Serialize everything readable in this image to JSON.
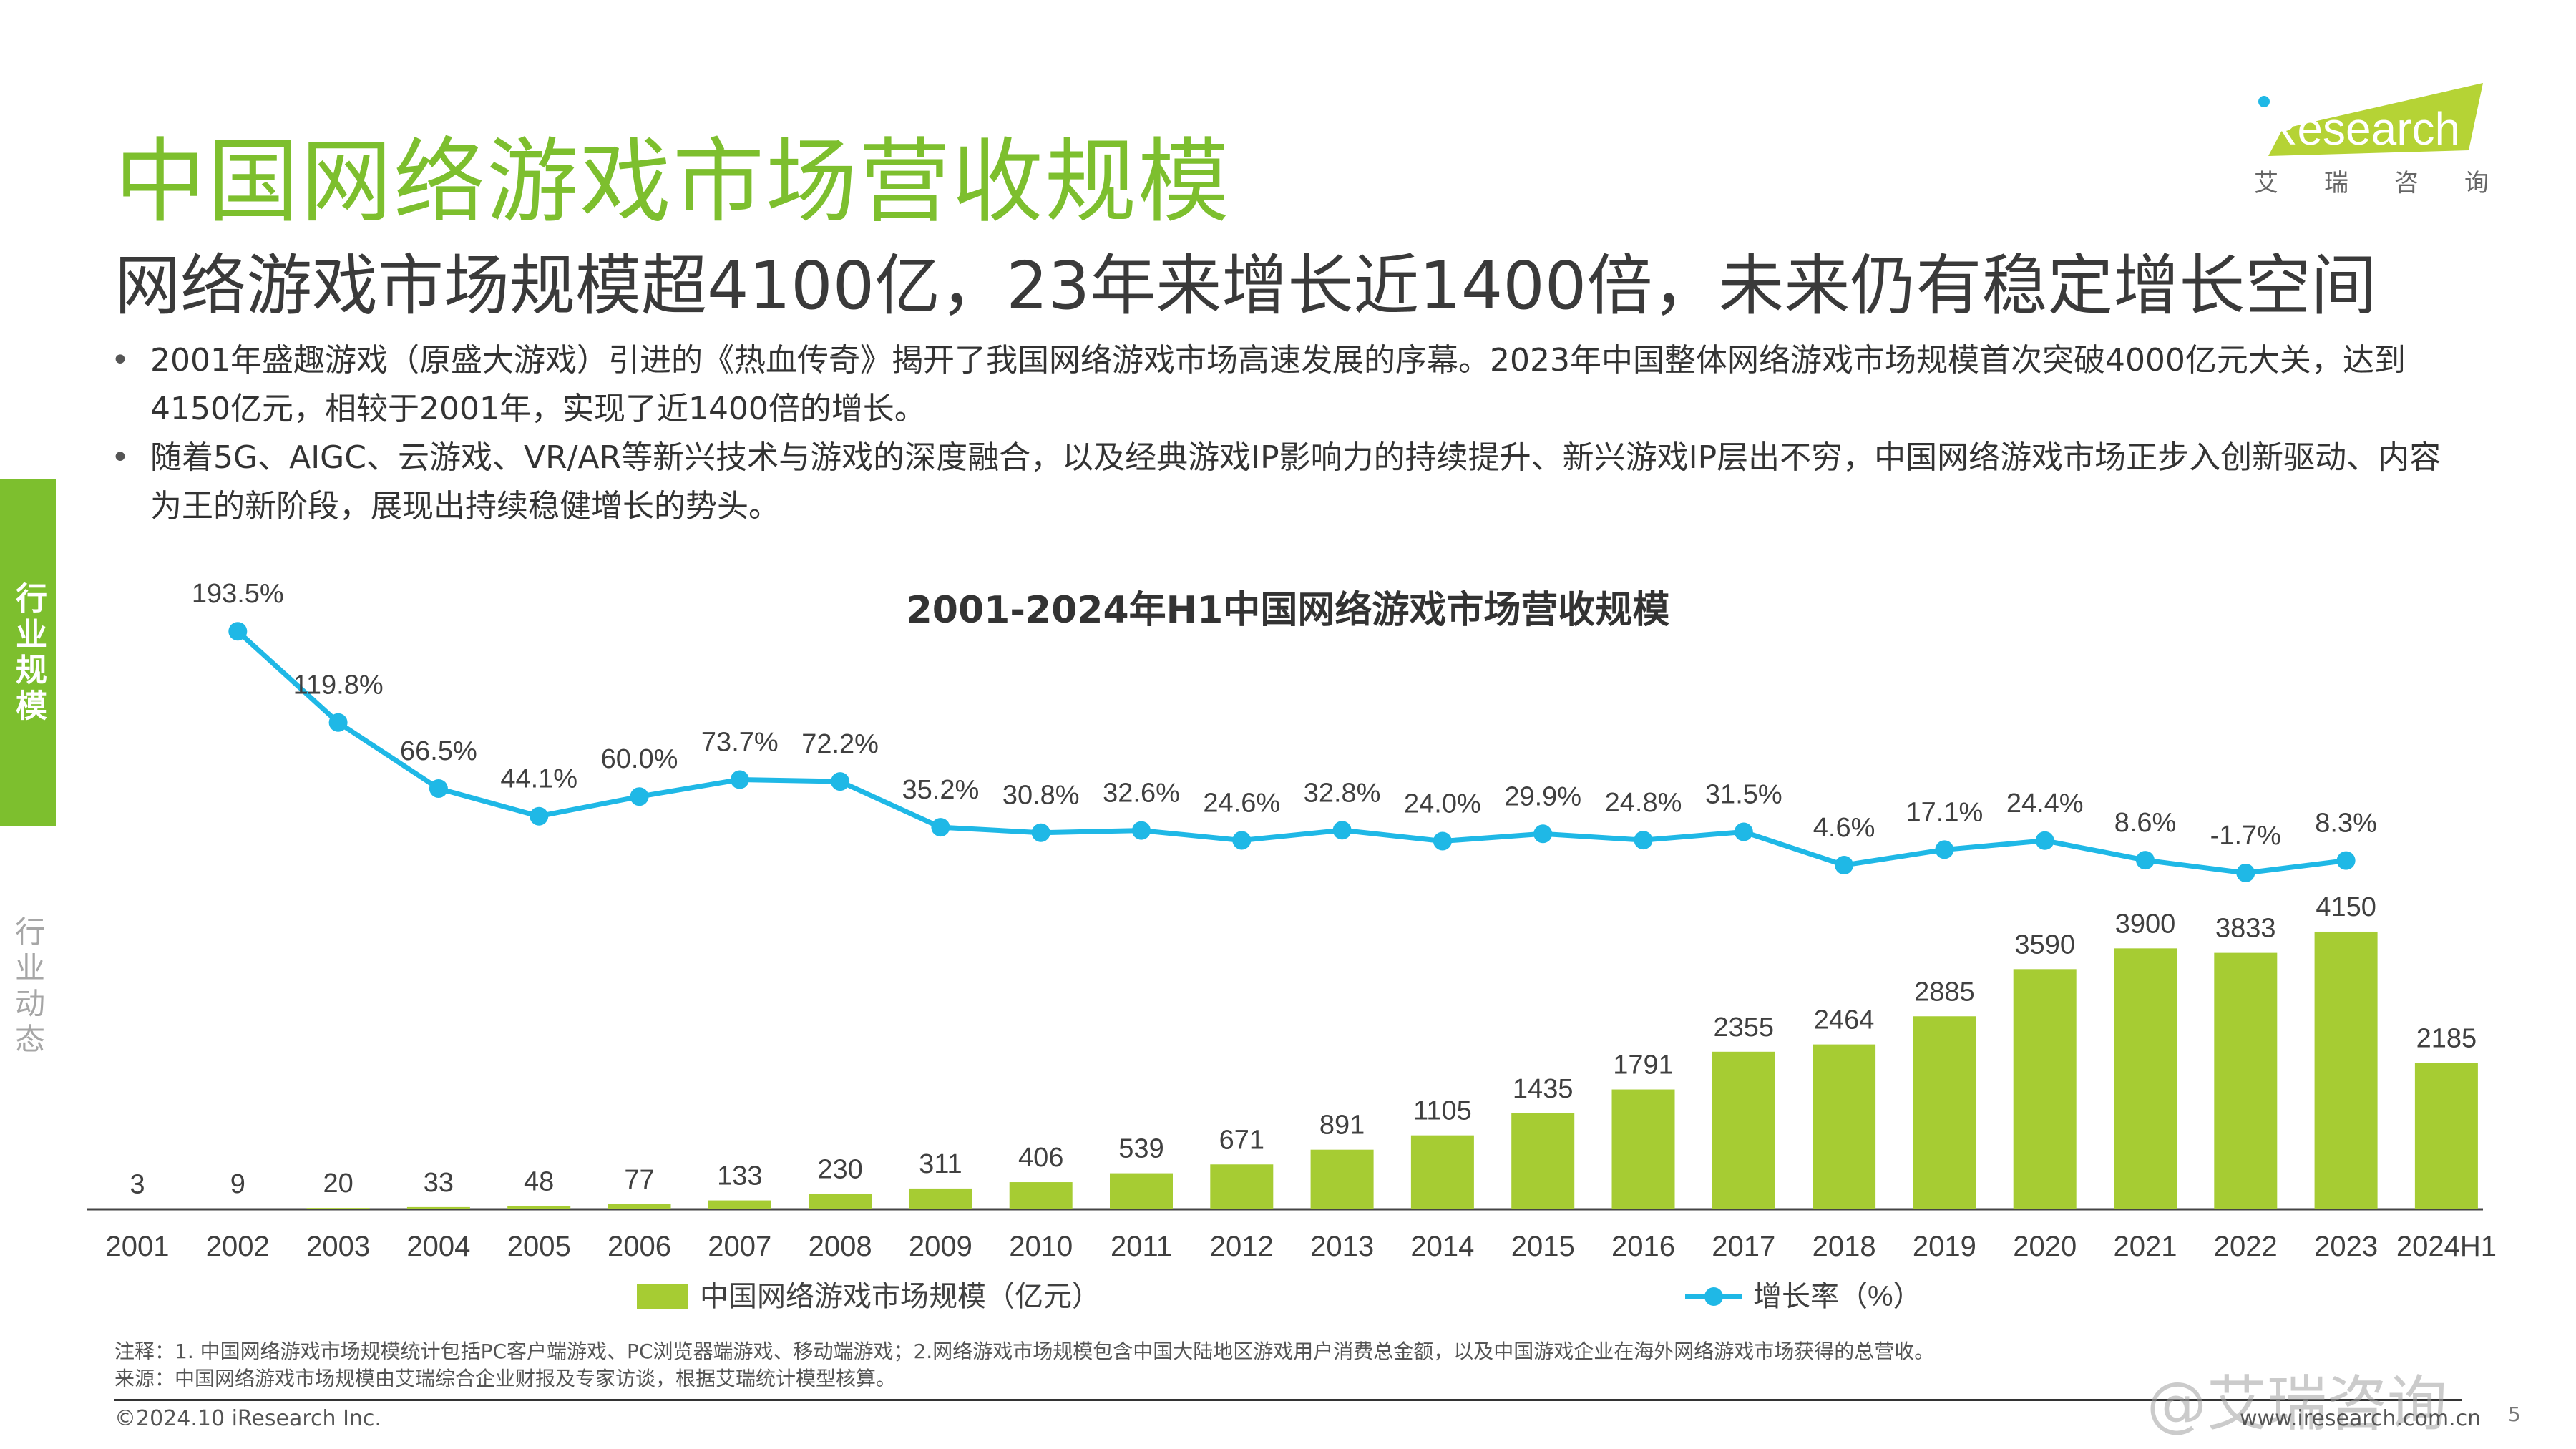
{
  "header": {
    "title": "中国网络游戏市场营收规模",
    "subtitle": "网络游戏市场规模超4100亿，23年来增长近1400倍，未来仍有稳定增长空间"
  },
  "logo": {
    "text": "iResearch",
    "tag_chars": [
      "艾",
      "瑞",
      "咨",
      "询"
    ]
  },
  "bullets": [
    "2001年盛趣游戏（原盛大游戏）引进的《热血传奇》揭开了我国网络游戏市场高速发展的序幕。2023年中国整体网络游戏市场规模首次突破4000亿元大关，达到4150亿元，相较于2001年，实现了近1400倍的增长。",
    "随着5G、AIGC、云游戏、VR/AR等新兴技术与游戏的深度融合，以及经典游戏IP影响力的持续提升、新兴游戏IP层出不穷，中国网络游戏市场正步入创新驱动、内容为王的新阶段，展现出持续稳健增长的势头。"
  ],
  "side_nav": {
    "active": "行业规模",
    "inactive": "行业动态"
  },
  "chart_data": {
    "type": "bar",
    "title": "2001-2024年H1中国网络游戏市场营收规模",
    "categories": [
      "2001",
      "2002",
      "2003",
      "2004",
      "2005",
      "2006",
      "2007",
      "2008",
      "2009",
      "2010",
      "2011",
      "2012",
      "2013",
      "2014",
      "2015",
      "2016",
      "2017",
      "2018",
      "2019",
      "2020",
      "2021",
      "2022",
      "2023",
      "2024H1"
    ],
    "series": [
      {
        "name": "中国网络游戏市场规模（亿元）",
        "type": "bar",
        "color": "#a6cc33",
        "values": [
          3,
          9,
          20,
          33,
          48,
          77,
          133,
          230,
          311,
          406,
          539,
          671,
          891,
          1105,
          1435,
          1791,
          2355,
          2464,
          2885,
          3590,
          3900,
          3833,
          4150,
          2185
        ]
      },
      {
        "name": "增长率（%）",
        "type": "line",
        "color": "#1fb8e6",
        "values": [
          null,
          193.5,
          119.8,
          66.5,
          44.1,
          60.0,
          73.7,
          72.2,
          35.2,
          30.8,
          32.6,
          24.6,
          32.8,
          24.0,
          29.9,
          24.8,
          31.5,
          4.6,
          17.1,
          24.4,
          8.6,
          -1.7,
          8.3,
          null
        ],
        "labels": [
          null,
          "193.5%",
          "119.8%",
          "66.5%",
          "44.1%",
          "60.0%",
          "73.7%",
          "72.2%",
          "35.2%",
          "30.8%",
          "32.6%",
          "24.6%",
          "32.8%",
          "24.0%",
          "29.9%",
          "24.8%",
          "31.5%",
          "4.6%",
          "17.1%",
          "24.4%",
          "8.6%",
          "-1.7%",
          "8.3%",
          null
        ]
      }
    ],
    "legend": "bottom-center",
    "grid": false
  },
  "notes": {
    "note": "注释：1. 中国网络游戏市场规模统计包括PC客户端游戏、PC浏览器端游戏、移动端游戏；2.网络游戏市场规模包含中国大陆地区游戏用户消费总金额，以及中国游戏企业在海外网络游戏市场获得的总营收。",
    "source": "来源：中国网络游戏市场规模由艾瑞综合企业财报及专家访谈，根据艾瑞统计模型核算。"
  },
  "footer": {
    "copyright": "©2024.10 iResearch Inc.",
    "website": "www.iresearch.com.cn",
    "watermark": "@艾瑞咨询",
    "page": "5"
  }
}
